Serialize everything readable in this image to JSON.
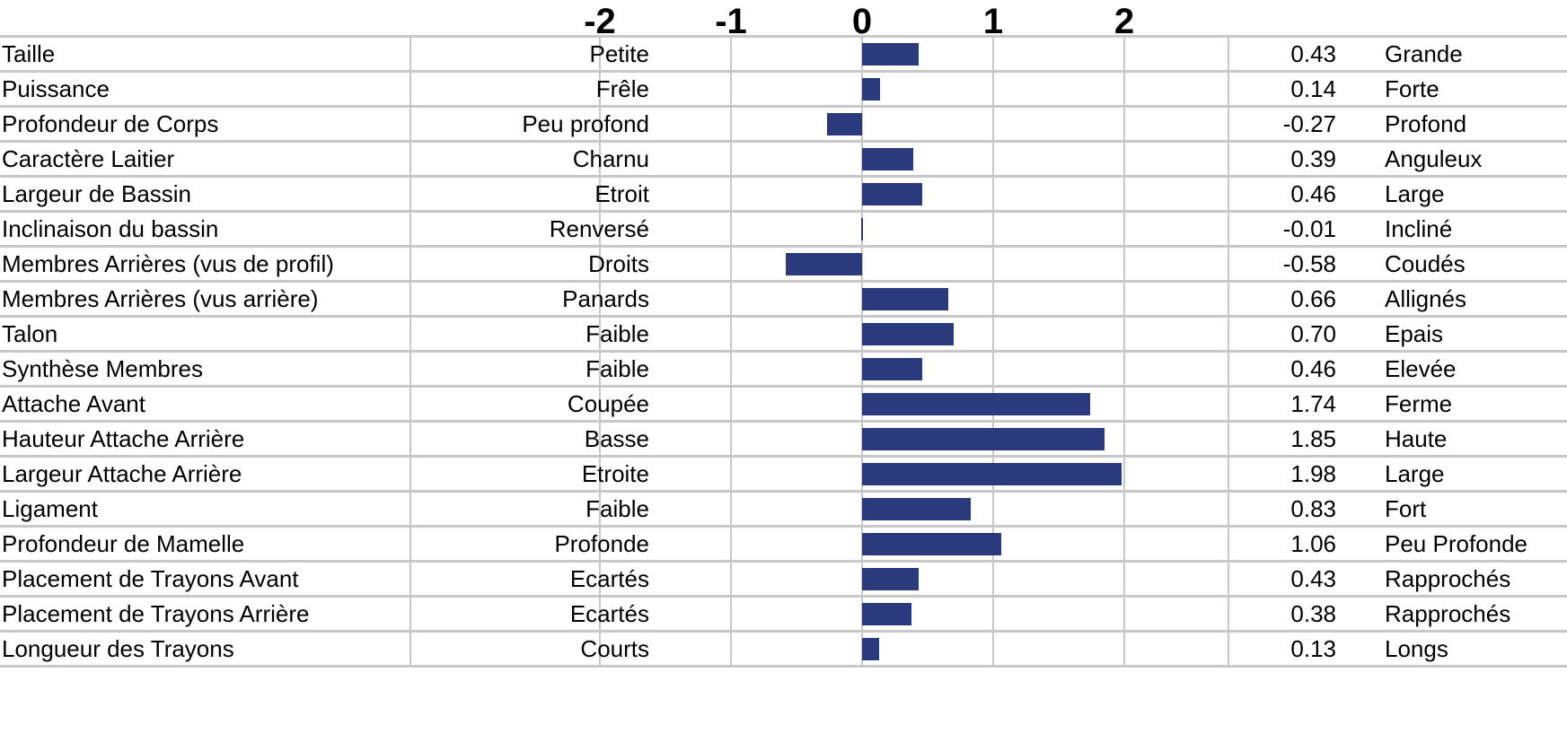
{
  "chart_data": {
    "type": "bar",
    "orientation": "horizontal",
    "title": "",
    "xlim": [
      -2,
      2
    ],
    "ticks": [
      "-2",
      "-1",
      "0",
      "1",
      "2"
    ],
    "bar_color": "#2a3a7c",
    "grid": true,
    "rows": [
      {
        "name": "Taille",
        "low": "Petite",
        "value": 0.43,
        "label": "0.43",
        "high": "Grande"
      },
      {
        "name": "Puissance",
        "low": "Frêle",
        "value": 0.14,
        "label": "0.14",
        "high": "Forte"
      },
      {
        "name": "Profondeur de Corps",
        "low": "Peu profond",
        "value": -0.27,
        "label": "-0.27",
        "high": "Profond"
      },
      {
        "name": "Caractère Laitier",
        "low": "Charnu",
        "value": 0.39,
        "label": "0.39",
        "high": "Anguleux"
      },
      {
        "name": "Largeur de Bassin",
        "low": "Etroit",
        "value": 0.46,
        "label": "0.46",
        "high": "Large"
      },
      {
        "name": "Inclinaison du bassin",
        "low": "Renversé",
        "value": -0.01,
        "label": "-0.01",
        "high": "Incliné"
      },
      {
        "name": "Membres Arrières (vus de profil)",
        "low": "Droits",
        "value": -0.58,
        "label": "-0.58",
        "high": "Coudés"
      },
      {
        "name": "Membres Arrières (vus arrière)",
        "low": "Panards",
        "value": 0.66,
        "label": "0.66",
        "high": "Allignés"
      },
      {
        "name": "Talon",
        "low": "Faible",
        "value": 0.7,
        "label": "0.70",
        "high": "Epais"
      },
      {
        "name": "Synthèse Membres",
        "low": "Faible",
        "value": 0.46,
        "label": "0.46",
        "high": "Elevée"
      },
      {
        "name": "Attache Avant",
        "low": "Coupée",
        "value": 1.74,
        "label": "1.74",
        "high": "Ferme"
      },
      {
        "name": "Hauteur Attache Arrière",
        "low": "Basse",
        "value": 1.85,
        "label": "1.85",
        "high": "Haute"
      },
      {
        "name": "Largeur Attache Arrière",
        "low": "Etroite",
        "value": 1.98,
        "label": "1.98",
        "high": "Large"
      },
      {
        "name": "Ligament",
        "low": "Faible",
        "value": 0.83,
        "label": "0.83",
        "high": "Fort"
      },
      {
        "name": "Profondeur de Mamelle",
        "low": "Profonde",
        "value": 1.06,
        "label": "1.06",
        "high": "Peu Profonde"
      },
      {
        "name": "Placement de Trayons Avant",
        "low": "Ecartés",
        "value": 0.43,
        "label": "0.43",
        "high": "Rapprochés"
      },
      {
        "name": "Placement de Trayons Arrière",
        "low": "Ecartés",
        "value": 0.38,
        "label": "0.38",
        "high": "Rapprochés"
      },
      {
        "name": "Longueur des Trayons",
        "low": "Courts",
        "value": 0.13,
        "label": "0.13",
        "high": "Longs"
      }
    ]
  }
}
